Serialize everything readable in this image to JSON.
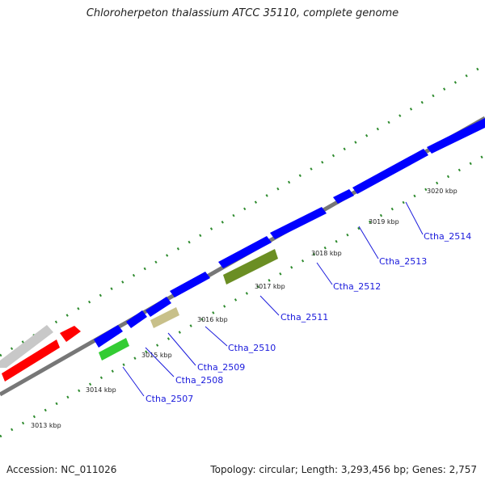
{
  "title": "Chloroherpeton thalassium ATCC 35110, complete genome",
  "footer": {
    "accession": "Accession: NC_011026",
    "summary": "Topology: circular; Length: 3,293,456 bp; Genes: 2,757"
  },
  "ticks": [
    "3013 kbp",
    "3014 kbp",
    "3015 kbp",
    "3016 kbp",
    "3017 kbp",
    "3018 kbp",
    "3019 kbp",
    "3020 kbp"
  ],
  "genes": [
    "Ctha_2507",
    "Ctha_2508",
    "Ctha_2509",
    "Ctha_2510",
    "Ctha_2511",
    "Ctha_2512",
    "Ctha_2513",
    "Ctha_2514"
  ],
  "colors": {
    "cds": "#0000ff",
    "rRNA": "#ff0000",
    "other": "#c8c8c8",
    "green": "#33cc33",
    "olive": "#6b8e23",
    "tan": "#c8c08a",
    "backbone": "#777777",
    "tick": "#2e8b2e",
    "label": "#1a1adc"
  }
}
